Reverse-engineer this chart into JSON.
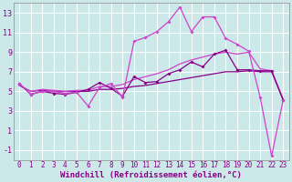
{
  "xlabel": "Windchill (Refroidissement éolien,°C)",
  "bg_color": "#cce8e8",
  "grid_color": "#b0d8d8",
  "xlim": [
    -0.5,
    23.5
  ],
  "ylim": [
    -2.0,
    14.0
  ],
  "yticks": [
    -1,
    1,
    3,
    5,
    7,
    9,
    11,
    13
  ],
  "xticks": [
    0,
    1,
    2,
    3,
    4,
    5,
    6,
    7,
    8,
    9,
    10,
    11,
    12,
    13,
    14,
    15,
    16,
    17,
    18,
    19,
    20,
    21,
    22,
    23
  ],
  "series_zigzag1_x": [
    0,
    1,
    2,
    3,
    4,
    5,
    6,
    7,
    8,
    9,
    10,
    11,
    12,
    13,
    14,
    15,
    16,
    17,
    18,
    19,
    20,
    21,
    22,
    23
  ],
  "series_zigzag1_y": [
    5.8,
    4.7,
    5.0,
    4.8,
    4.7,
    4.9,
    5.2,
    5.9,
    5.3,
    4.5,
    6.5,
    5.9,
    6.0,
    6.8,
    7.2,
    8.0,
    7.5,
    8.8,
    9.2,
    7.2,
    7.2,
    7.1,
    7.1,
    4.1
  ],
  "series_zigzag2_x": [
    0,
    1,
    2,
    3,
    4,
    5,
    6,
    7,
    8,
    9,
    10,
    11,
    12,
    13,
    14,
    15,
    16,
    17,
    18,
    19,
    20,
    21,
    22,
    23
  ],
  "series_zigzag2_y": [
    5.8,
    4.7,
    5.0,
    5.0,
    4.8,
    4.9,
    3.5,
    5.4,
    5.8,
    4.4,
    10.1,
    10.5,
    11.1,
    12.1,
    13.6,
    11.1,
    12.6,
    12.6,
    10.4,
    9.8,
    9.1,
    4.4,
    -1.6,
    4.1
  ],
  "series_smooth1_x": [
    0,
    1,
    2,
    3,
    4,
    5,
    6,
    7,
    8,
    9,
    10,
    11,
    12,
    13,
    14,
    15,
    16,
    17,
    18,
    19,
    20,
    21,
    22,
    23
  ],
  "series_smooth1_y": [
    5.6,
    5.0,
    5.2,
    5.1,
    5.0,
    5.1,
    5.1,
    5.5,
    5.5,
    5.7,
    6.2,
    6.5,
    6.8,
    7.2,
    7.8,
    8.2,
    8.5,
    8.8,
    9.0,
    8.8,
    9.0,
    7.3,
    7.1,
    4.2
  ],
  "series_smooth2_x": [
    0,
    1,
    2,
    3,
    4,
    5,
    6,
    7,
    8,
    9,
    10,
    11,
    12,
    13,
    14,
    15,
    16,
    17,
    18,
    19,
    20,
    21,
    22,
    23
  ],
  "series_smooth2_y": [
    5.6,
    5.0,
    5.1,
    5.0,
    5.0,
    5.0,
    5.0,
    5.2,
    5.2,
    5.3,
    5.5,
    5.6,
    5.8,
    6.0,
    6.2,
    6.4,
    6.6,
    6.8,
    7.0,
    7.0,
    7.1,
    7.0,
    7.0,
    4.2
  ],
  "color_dark": "#880088",
  "color_light": "#cc44cc",
  "tick_fontsize": 5.5,
  "label_fontsize": 6.5
}
